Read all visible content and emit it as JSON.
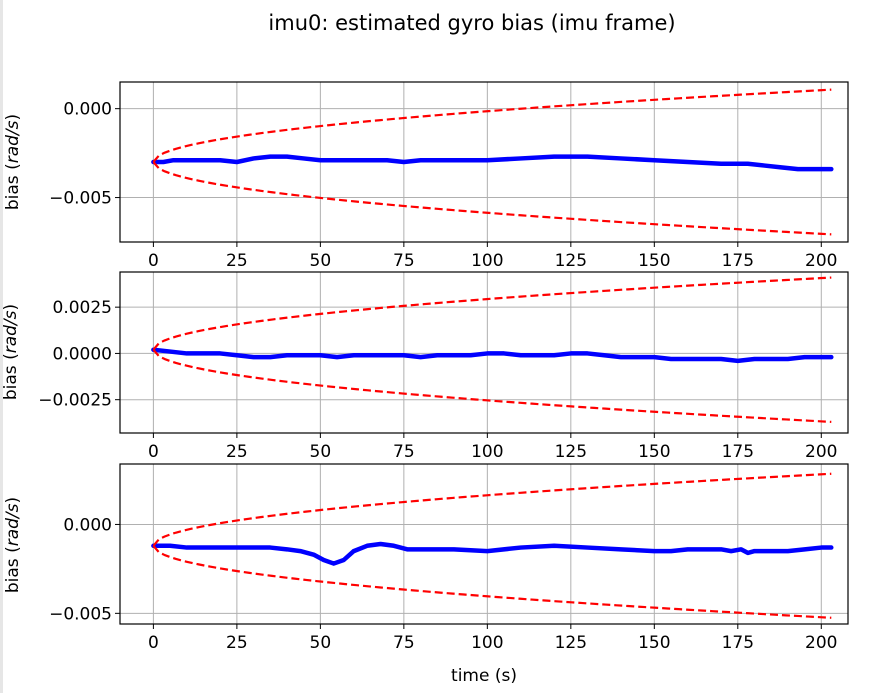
{
  "chart_data": {
    "title": "imu0: estimated gyro bias (imu frame)",
    "type": "line",
    "subplots": [
      {
        "ylabel": "bias (rad/s)",
        "ylabel_prefix": "bias (",
        "ylabel_unit": "rad/s",
        "ylabel_suffix": ")",
        "xlim": [
          -10,
          208
        ],
        "ylim": [
          -0.0075,
          0.0015
        ],
        "xticks": [
          0,
          25,
          50,
          75,
          100,
          125,
          150,
          175,
          200
        ],
        "xtick_labels": [
          "0",
          "25",
          "50",
          "75",
          "100",
          "125",
          "150",
          "175",
          "200"
        ],
        "yticks": [
          0.0,
          -0.005
        ],
        "ytick_labels": [
          "0.000",
          "−0.005"
        ],
        "grid": true,
        "series": [
          {
            "role": "estimate",
            "color": "#0000ff",
            "style": "solid",
            "x": [
              0,
              3,
              6,
              9,
              12,
              16,
              20,
              25,
              30,
              35,
              40,
              45,
              50,
              55,
              60,
              65,
              70,
              75,
              80,
              85,
              90,
              95,
              100,
              110,
              120,
              130,
              140,
              150,
              160,
              170,
              178,
              183,
              188,
              193,
              198,
              203
            ],
            "y": [
              -0.003,
              -0.003,
              -0.0029,
              -0.0029,
              -0.0029,
              -0.0029,
              -0.0029,
              -0.003,
              -0.0028,
              -0.0027,
              -0.0027,
              -0.0028,
              -0.0029,
              -0.0029,
              -0.0029,
              -0.0029,
              -0.0029,
              -0.003,
              -0.0029,
              -0.0029,
              -0.0029,
              -0.0029,
              -0.0029,
              -0.0028,
              -0.0027,
              -0.0027,
              -0.0028,
              -0.0029,
              -0.003,
              -0.0031,
              -0.0031,
              -0.0032,
              -0.0033,
              -0.0034,
              -0.0034,
              -0.0034
            ]
          },
          {
            "role": "upper bound",
            "color": "#ff0000",
            "style": "dashed",
            "center": -0.003,
            "amplitude": 0.00407
          },
          {
            "role": "lower bound",
            "color": "#ff0000",
            "style": "dashed",
            "center": -0.003,
            "amplitude": -0.00407
          }
        ]
      },
      {
        "ylabel": "bias (rad/s)",
        "ylabel_prefix": "bias (",
        "ylabel_unit": "rad/s",
        "ylabel_suffix": ")",
        "xlim": [
          -10,
          208
        ],
        "ylim": [
          -0.0043,
          0.0044
        ],
        "xticks": [
          0,
          25,
          50,
          75,
          100,
          125,
          150,
          175,
          200
        ],
        "xtick_labels": [
          "0",
          "25",
          "50",
          "75",
          "100",
          "125",
          "150",
          "175",
          "200"
        ],
        "yticks": [
          0.0025,
          0.0,
          -0.0025
        ],
        "ytick_labels": [
          "0.0025",
          "0.0000",
          "−0.0025"
        ],
        "grid": true,
        "series": [
          {
            "role": "estimate",
            "color": "#0000ff",
            "style": "solid",
            "x": [
              0,
              5,
              10,
              15,
              20,
              25,
              30,
              35,
              40,
              45,
              50,
              55,
              60,
              65,
              70,
              75,
              80,
              85,
              90,
              95,
              100,
              105,
              110,
              115,
              120,
              125,
              130,
              135,
              140,
              145,
              150,
              155,
              160,
              165,
              170,
              175,
              180,
              185,
              190,
              195,
              200,
              203
            ],
            "y": [
              0.0002,
              0.0001,
              0.0,
              0.0,
              0.0,
              -0.0001,
              -0.0002,
              -0.0002,
              -0.0001,
              -0.0001,
              -0.0001,
              -0.0002,
              -0.0001,
              -0.0001,
              -0.0001,
              -0.0001,
              -0.0002,
              -0.0001,
              -0.0001,
              -0.0001,
              0.0,
              0.0,
              -0.0001,
              -0.0001,
              -0.0001,
              0.0,
              0.0,
              -0.0001,
              -0.0002,
              -0.0002,
              -0.0002,
              -0.0003,
              -0.0003,
              -0.0003,
              -0.0003,
              -0.0004,
              -0.0003,
              -0.0003,
              -0.0003,
              -0.0002,
              -0.0002,
              -0.0002
            ]
          },
          {
            "role": "upper bound",
            "color": "#ff0000",
            "style": "dashed",
            "center": 0.0002,
            "amplitude": 0.0039
          },
          {
            "role": "lower bound",
            "color": "#ff0000",
            "style": "dashed",
            "center": 0.0002,
            "amplitude": -0.0039
          }
        ]
      },
      {
        "ylabel": "bias (rad/s)",
        "ylabel_prefix": "bias (",
        "ylabel_unit": "rad/s",
        "ylabel_suffix": ")",
        "xlabel": "time (s)",
        "xlim": [
          -10,
          208
        ],
        "ylim": [
          -0.0056,
          0.0034
        ],
        "xticks": [
          0,
          25,
          50,
          75,
          100,
          125,
          150,
          175,
          200
        ],
        "xtick_labels": [
          "0",
          "25",
          "50",
          "75",
          "100",
          "125",
          "150",
          "175",
          "200"
        ],
        "yticks": [
          0.0,
          -0.005
        ],
        "ytick_labels": [
          "0.000",
          "−0.005"
        ],
        "grid": true,
        "series": [
          {
            "role": "estimate",
            "color": "#0000ff",
            "style": "solid",
            "x": [
              0,
              5,
              10,
              15,
              20,
              25,
              30,
              35,
              40,
              44,
              48,
              51,
              54,
              57,
              60,
              64,
              68,
              72,
              76,
              80,
              90,
              100,
              110,
              120,
              130,
              140,
              150,
              155,
              160,
              165,
              170,
              173,
              176,
              178,
              180,
              185,
              190,
              195,
              200,
              203
            ],
            "y": [
              -0.0012,
              -0.0012,
              -0.0013,
              -0.0013,
              -0.0013,
              -0.0013,
              -0.0013,
              -0.0013,
              -0.0014,
              -0.0015,
              -0.0017,
              -0.002,
              -0.0022,
              -0.002,
              -0.0015,
              -0.0012,
              -0.0011,
              -0.0012,
              -0.0014,
              -0.0014,
              -0.0014,
              -0.0015,
              -0.0013,
              -0.0012,
              -0.0013,
              -0.0014,
              -0.0015,
              -0.0015,
              -0.0014,
              -0.0014,
              -0.0014,
              -0.0015,
              -0.0014,
              -0.0016,
              -0.0015,
              -0.0015,
              -0.0015,
              -0.0014,
              -0.0013,
              -0.0013
            ]
          },
          {
            "role": "upper bound",
            "color": "#ff0000",
            "style": "dashed",
            "center": -0.0012,
            "amplitude": 0.00405
          },
          {
            "role": "lower bound",
            "color": "#ff0000",
            "style": "dashed",
            "center": -0.0012,
            "amplitude": -0.00405
          }
        ]
      }
    ]
  }
}
